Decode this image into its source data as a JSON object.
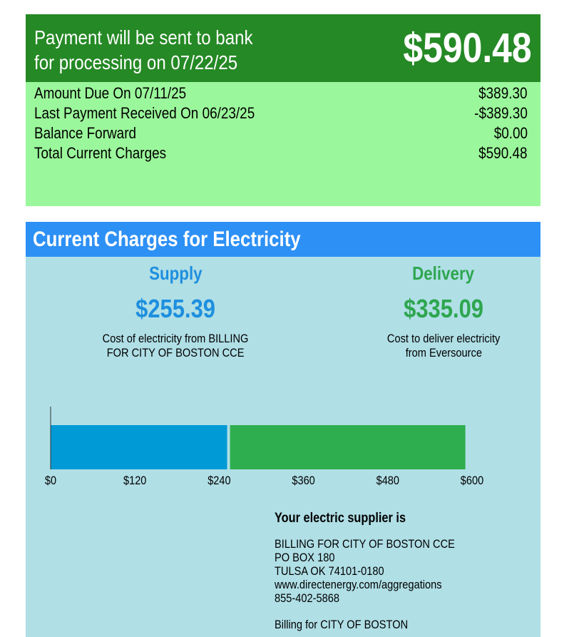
{
  "payment": {
    "message_line1": "Payment will be sent to bank",
    "message_line2": "for processing on 07/22/25",
    "amount": "$590.48"
  },
  "summary": {
    "rows": [
      {
        "label": "Amount Due On 07/11/25",
        "value": "$389.30"
      },
      {
        "label": "Last Payment Received On 06/23/25",
        "value": "-$389.30"
      },
      {
        "label": "Balance Forward",
        "value": "$0.00"
      },
      {
        "label": "Total Current Charges",
        "value": "$590.48"
      }
    ]
  },
  "electricity": {
    "title": "Current Charges for Electricity",
    "supply": {
      "title": "Supply",
      "amount": "$255.39",
      "desc_line1": "Cost of electricity from BILLING",
      "desc_line2": "FOR CITY OF BOSTON CCE"
    },
    "delivery": {
      "title": "Delivery",
      "amount": "$335.09",
      "desc_line1": "Cost to deliver electricity",
      "desc_line2": "from Eversource"
    }
  },
  "colors": {
    "header_green": "#258925",
    "summary_green": "#9bf79b",
    "section_blue": "#2d90f5",
    "panel_blue": "#b0dfe6",
    "supply_blue": "#1e8fdf",
    "supply_bar": "#009ad6",
    "delivery_green": "#2ea64f",
    "delivery_bar": "#2eae4e"
  },
  "chart_data": {
    "type": "bar",
    "orientation": "horizontal",
    "stacked": true,
    "categories": [
      ""
    ],
    "series": [
      {
        "name": "Supply",
        "values": [
          255.39
        ]
      },
      {
        "name": "Delivery",
        "values": [
          335.09
        ]
      }
    ],
    "xlim": [
      0,
      600
    ],
    "xticks": [
      "$0",
      "$120",
      "$240",
      "$360",
      "$480",
      "$600"
    ],
    "tick_values": [
      0,
      120,
      240,
      360,
      480,
      600
    ],
    "grid": false
  },
  "supplier": {
    "heading": "Your electric supplier is",
    "lines": [
      "BILLING FOR CITY OF BOSTON CCE",
      "PO BOX 180",
      "TULSA OK 74101-0180",
      "www.directenergy.com/aggregations",
      "855-402-5868"
    ],
    "footer": "Billing for CITY OF BOSTON"
  }
}
